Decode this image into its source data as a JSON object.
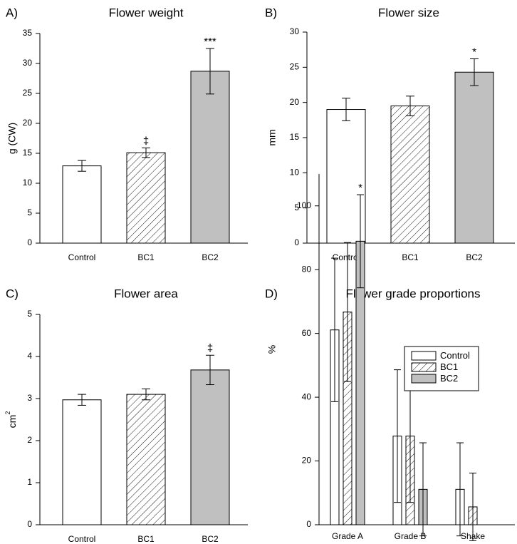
{
  "chart_data": [
    {
      "type": "bar",
      "panel": "A)",
      "title": "Flower weight",
      "ylabel": "g (CW)",
      "ylim": [
        0,
        35
      ],
      "yticks": [
        0,
        5,
        10,
        15,
        20,
        25,
        30,
        35
      ],
      "categories": [
        "Control",
        "BC1",
        "BC2"
      ],
      "values": [
        12.9,
        15.1,
        28.7
      ],
      "errors": [
        0.9,
        0.8,
        3.8
      ],
      "annotations": [
        "",
        "‡",
        "***"
      ],
      "fills": [
        "white",
        "hatch",
        "gray"
      ]
    },
    {
      "type": "bar",
      "panel": "B)",
      "title": "Flower size",
      "ylabel": "mm",
      "ylim": [
        0,
        30
      ],
      "yticks": [
        0,
        5,
        10,
        15,
        20,
        25,
        30
      ],
      "categories": [
        "Control",
        "BC1",
        "BC2"
      ],
      "values": [
        19.0,
        19.5,
        24.3
      ],
      "errors": [
        1.6,
        1.4,
        1.9
      ],
      "annotations": [
        "",
        "",
        "*"
      ],
      "fills": [
        "white",
        "hatch",
        "gray"
      ]
    },
    {
      "type": "bar",
      "panel": "C)",
      "title": "Flower area",
      "ylabel": "cm",
      "ylabel_superscript": "2",
      "ylim": [
        0,
        5
      ],
      "yticks": [
        0,
        1,
        2,
        3,
        4,
        5
      ],
      "categories": [
        "Control",
        "BC1",
        "BC2"
      ],
      "values": [
        2.97,
        3.1,
        3.68
      ],
      "errors": [
        0.13,
        0.13,
        0.35
      ],
      "annotations": [
        "",
        "",
        "‡"
      ],
      "fills": [
        "white",
        "hatch",
        "gray"
      ]
    },
    {
      "type": "bar",
      "panel": "D)",
      "title": "Flower grade proportions",
      "ylabel": "%",
      "ylim": [
        0,
        110
      ],
      "yticks": [
        0,
        20,
        40,
        60,
        80,
        100
      ],
      "categories": [
        "Grade A",
        "Grade B",
        "Shake"
      ],
      "series": [
        {
          "name": "Control",
          "fill": "white",
          "values": [
            61.1,
            27.8,
            11.1
          ],
          "errors": [
            22.5,
            20.8,
            14.6
          ]
        },
        {
          "name": "BC1",
          "fill": "hatch",
          "values": [
            66.7,
            27.8,
            5.6
          ],
          "errors": [
            21.8,
            20.8,
            10.6
          ]
        },
        {
          "name": "BC2",
          "fill": "gray",
          "values": [
            88.9,
            11.1,
            0
          ],
          "errors": [
            14.6,
            14.6,
            0
          ]
        }
      ],
      "annotations": [
        [
          "",
          "",
          "*"
        ],
        [
          "",
          "",
          ""
        ],
        [
          "",
          "",
          ""
        ]
      ],
      "legend_position": "top-right"
    }
  ],
  "colors": {
    "gray_bar": "#c0c0c0",
    "axis": "#000000",
    "hatch": "#000000"
  }
}
